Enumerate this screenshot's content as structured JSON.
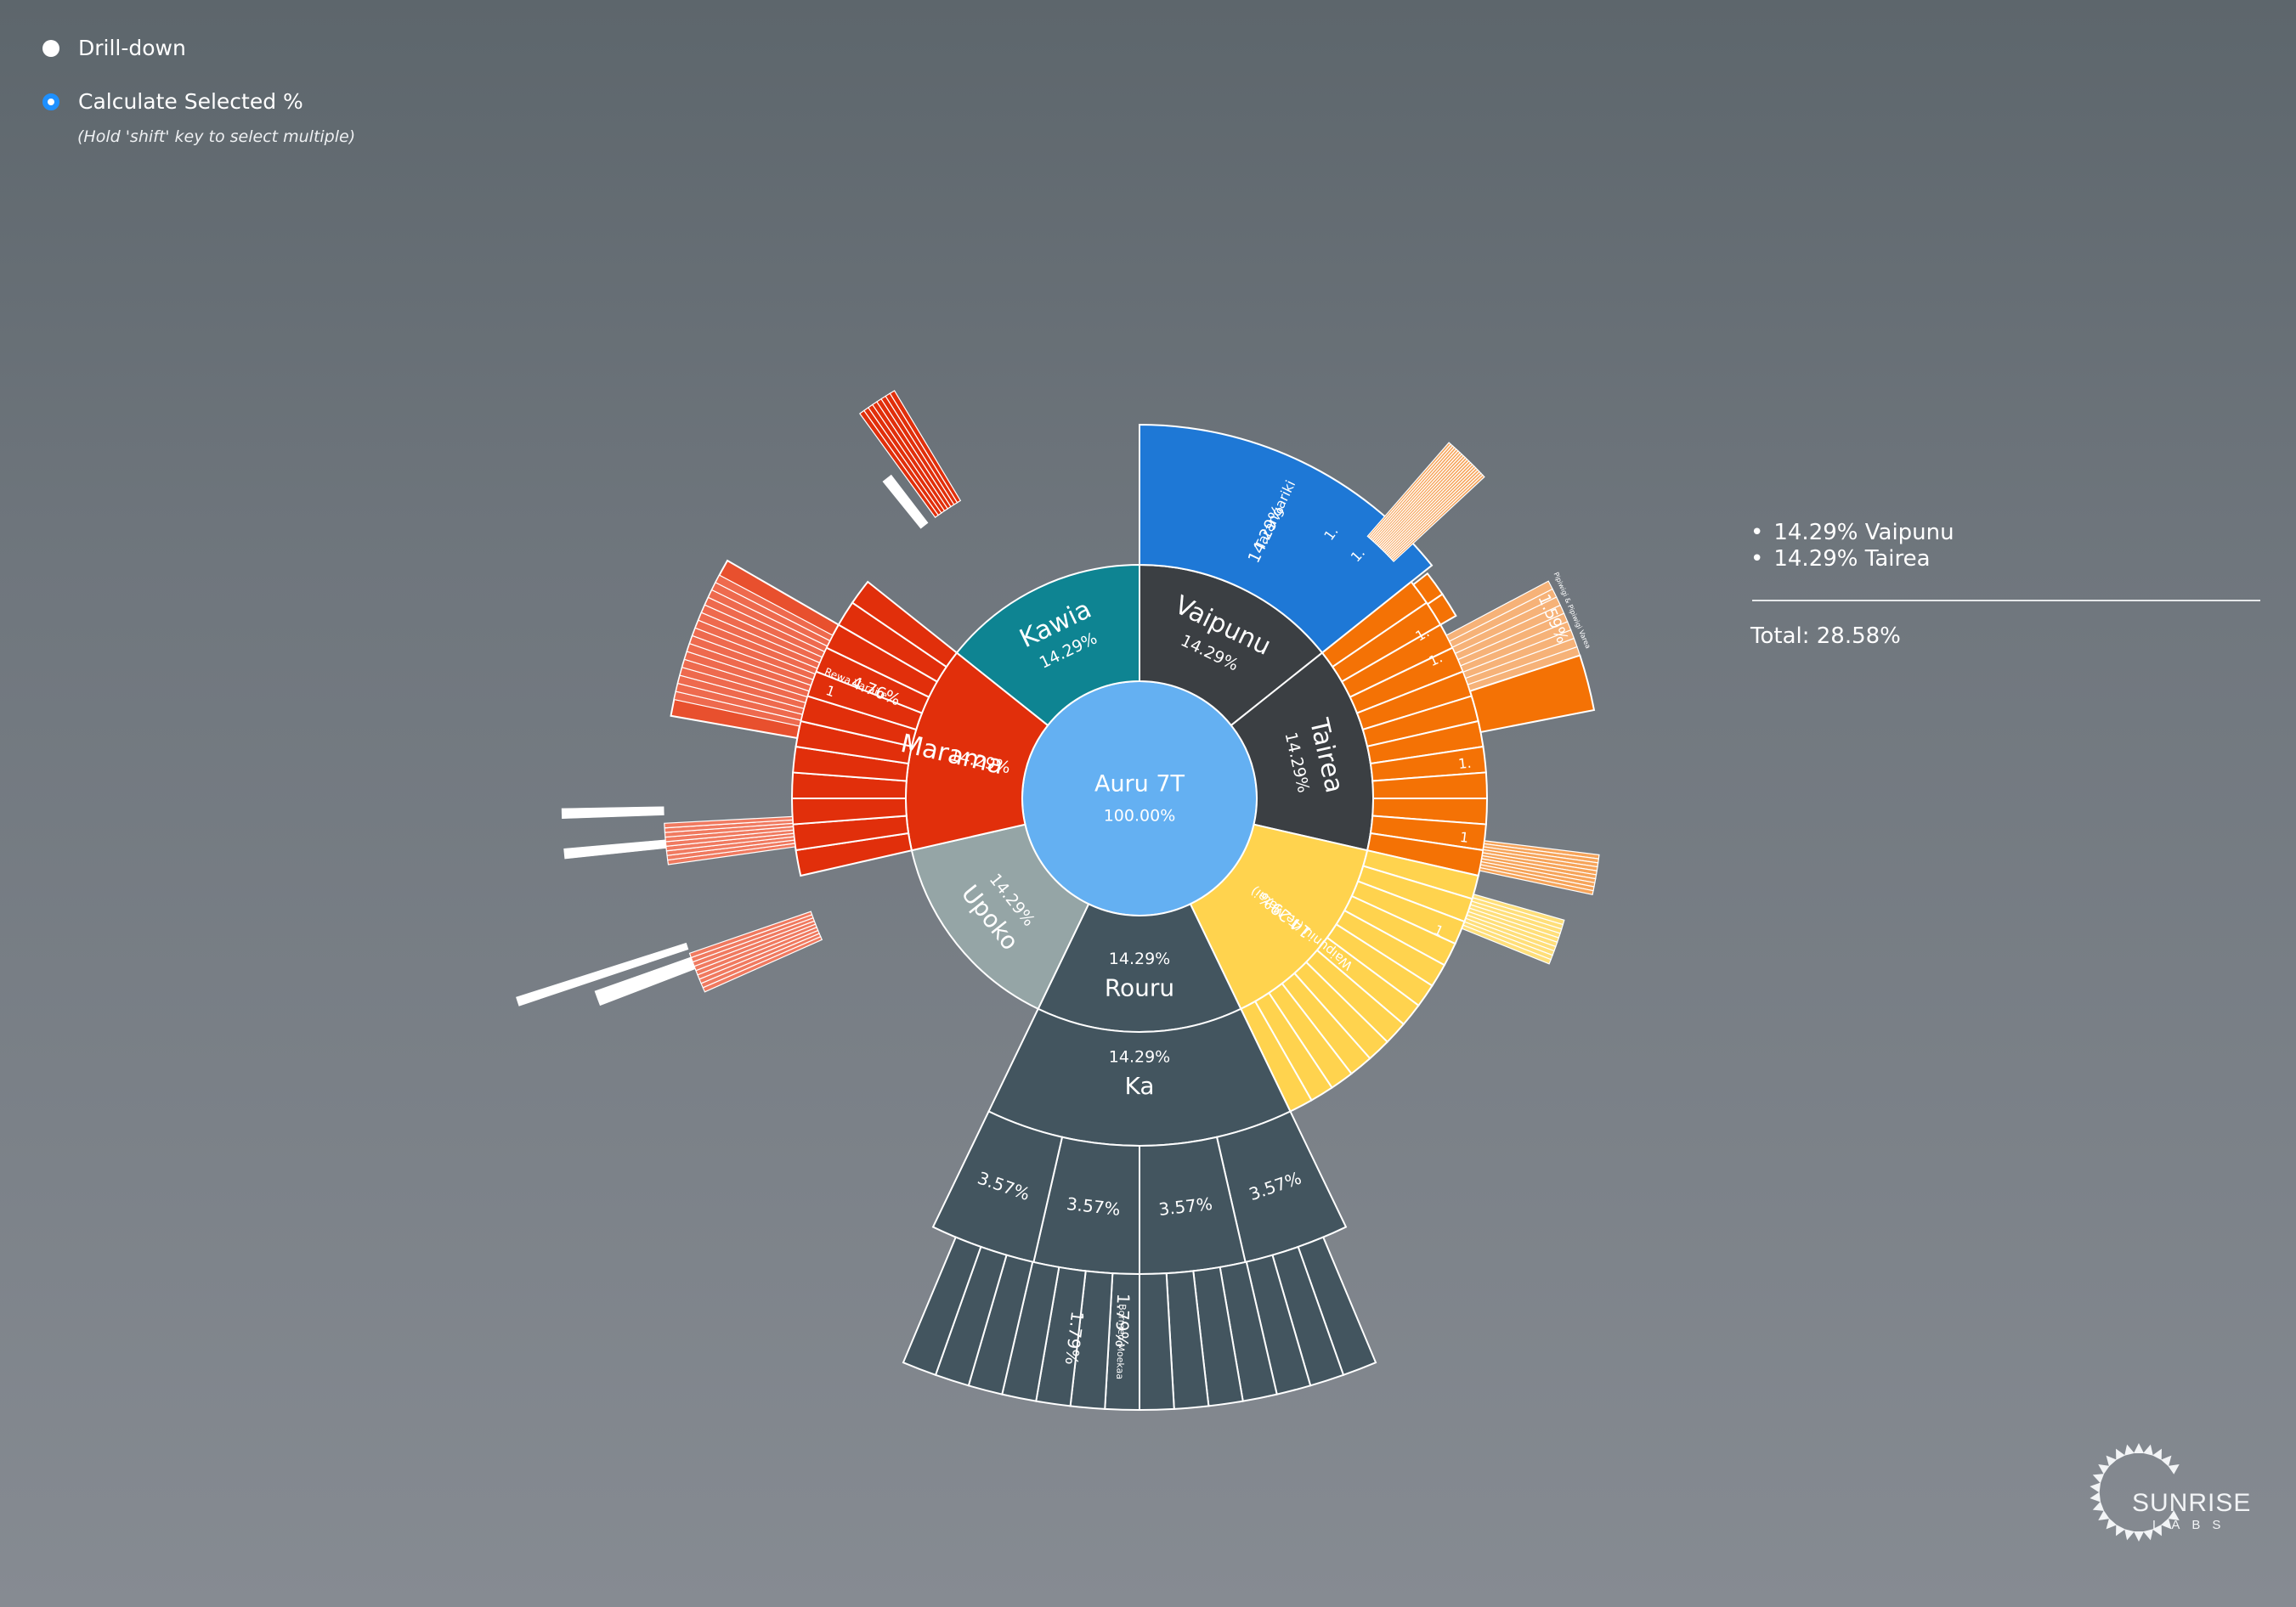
{
  "controls": {
    "drilldown_label": "Drill-down",
    "calc_label": "Calculate Selected %",
    "hint": "(Hold 'shift' key to select multiple)",
    "selected_mode": "calculate"
  },
  "selection": {
    "items": [
      "14.29% Vaipunu",
      "14.29% Tairea"
    ],
    "total": "Total: 28.58%"
  },
  "logo": {
    "line1": "SUNRISE",
    "line2": "LABS"
  },
  "colors": {
    "root": "#64b0f2",
    "Vaipunu": "#3b3f43",
    "Tairea": "#3b3f43",
    "Waipuniu": "#ffd34e",
    "Rouru": "#43555f",
    "Ka": "#43555f",
    "Upoko": "#95a5a6",
    "Marama": "#e12f0b",
    "Kawia": "#0e8492",
    "Tarangariki": "#1e78d6",
    "Tairea_child": "#f47205",
    "border": "#ffffff"
  },
  "chart_data": {
    "type": "sunburst",
    "root": {
      "name": "Auru 7T",
      "value": "100.00%"
    },
    "ring1": [
      {
        "name": "Vaipunu",
        "value": "14.29%"
      },
      {
        "name": "Tairea",
        "value": "14.29%"
      },
      {
        "name": "Waipuniu (Te Matai)",
        "value": "14.29%"
      },
      {
        "name": "Rouru",
        "value": "14.29%"
      },
      {
        "name": "Upoko",
        "value": "14.29%"
      },
      {
        "name": "Marama",
        "value": "14.29%"
      },
      {
        "name": "Kawia",
        "value": "14.29%"
      }
    ],
    "ring2": [
      {
        "parent": "Vaipunu",
        "name": "Tarangariki",
        "value": "14.29%"
      },
      {
        "parent": "Rouru",
        "name": "Ka",
        "value": "14.29%"
      },
      {
        "parent": "Marama",
        "name": "Rewa Varaire",
        "value": "4.76%"
      }
    ],
    "ring3": [
      {
        "parent": "Ka",
        "value": "3.57%"
      },
      {
        "parent": "Ka",
        "value": "3.57%"
      },
      {
        "parent": "Ka",
        "value": "3.57%"
      },
      {
        "parent": "Ka",
        "value": "3.57%"
      },
      {
        "parent": "Tairea",
        "name": "Pipiwigi & Pipiwigi Varea",
        "value": "1.59%"
      }
    ],
    "ring4": [
      {
        "parent": "Ka",
        "value": "1.79%"
      },
      {
        "parent": "Ka",
        "name": "Bormeo Moekaa",
        "value": "1.79%"
      }
    ],
    "truncated_labels": [
      "1.",
      "1.",
      "1.",
      "1.",
      "1.",
      "1",
      "1",
      "1"
    ]
  }
}
